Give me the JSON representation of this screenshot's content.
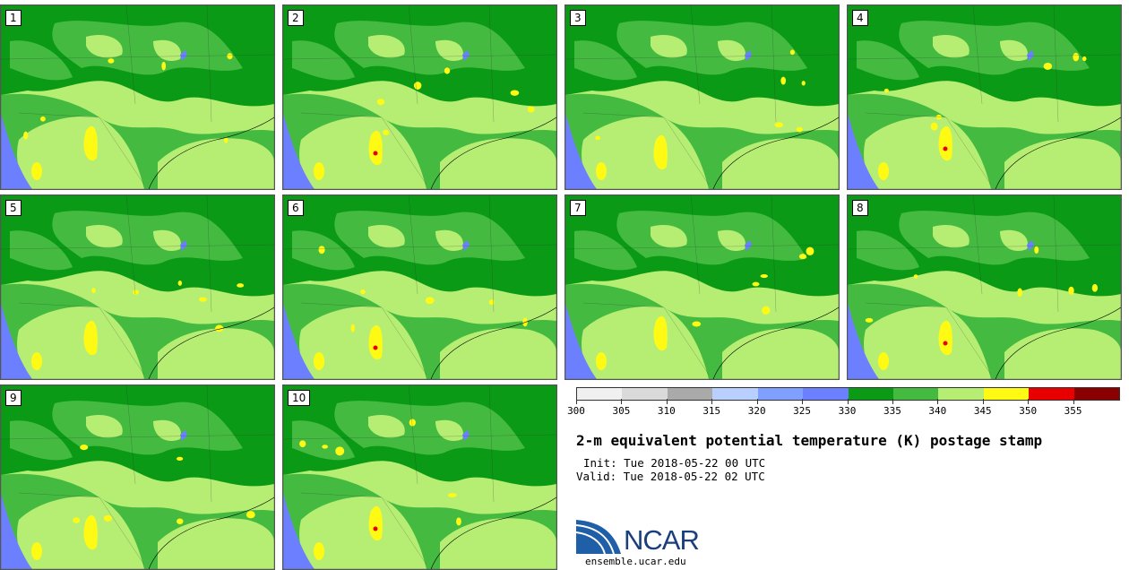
{
  "panels": [
    {
      "label": "1"
    },
    {
      "label": "2"
    },
    {
      "label": "3"
    },
    {
      "label": "4"
    },
    {
      "label": "5"
    },
    {
      "label": "6"
    },
    {
      "label": "7"
    },
    {
      "label": "8"
    },
    {
      "label": "9"
    },
    {
      "label": "10"
    }
  ],
  "colorbar": {
    "colors": [
      "#f0f0f0",
      "#dadada",
      "#aaaaaa",
      "#b8cfff",
      "#80a0ff",
      "#6c80ff",
      "#0a9a16",
      "#44bb40",
      "#b6ee74",
      "#fffa14",
      "#e80000",
      "#8a0000"
    ],
    "ticks": [
      "300",
      "305",
      "310",
      "315",
      "320",
      "325",
      "330",
      "335",
      "340",
      "345",
      "350",
      "355"
    ]
  },
  "map_colors": {
    "water": "#6c80ff",
    "dark_green": "#0a9a16",
    "mid_green": "#44bb40",
    "light_green": "#b6ee74",
    "yellow": "#fffa14",
    "red": "#e80000"
  },
  "title": "2-m equivalent potential temperature (K) postage stamp",
  "init": "Init: Tue 2018-05-22 00 UTC",
  "valid": "Valid: Tue 2018-05-22 02 UTC",
  "logo": {
    "text": "NCAR",
    "site": "ensemble.ucar.edu"
  }
}
